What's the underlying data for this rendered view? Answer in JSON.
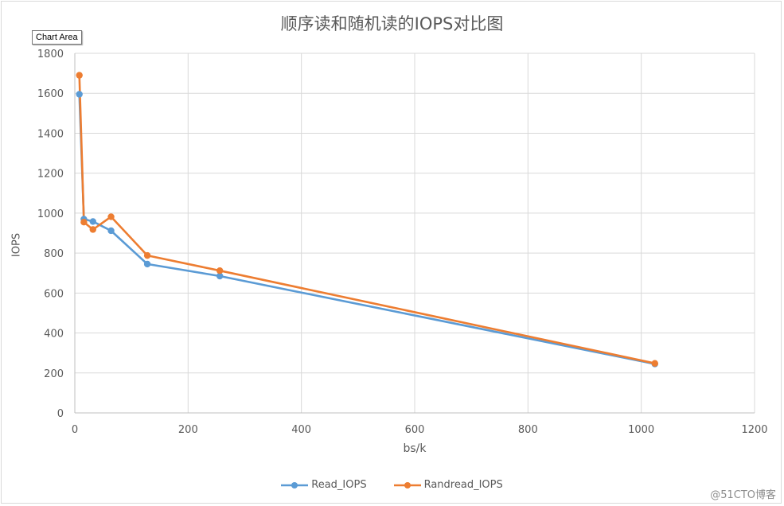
{
  "tooltip": "Chart Area",
  "watermark": "@51CTO博客",
  "chart_data": {
    "type": "line",
    "title": "顺序读和随机读的IOPS对比图",
    "xlabel": "bs/k",
    "ylabel": "IOPS",
    "xlim": [
      0,
      1200
    ],
    "ylim": [
      0,
      1800
    ],
    "x_ticks": [
      0,
      200,
      400,
      600,
      800,
      1000,
      1200
    ],
    "y_ticks": [
      0,
      200,
      400,
      600,
      800,
      1000,
      1200,
      1400,
      1600,
      1800
    ],
    "grid": true,
    "legend_position": "bottom",
    "series": [
      {
        "name": "Read_IOPS",
        "color": "#5b9bd5",
        "x": [
          8,
          16,
          32,
          64,
          128,
          256,
          1024
        ],
        "y": [
          1595,
          970,
          958,
          912,
          745,
          685,
          245
        ]
      },
      {
        "name": "Randread_IOPS",
        "color": "#ed7d31",
        "x": [
          8,
          16,
          32,
          64,
          128,
          256,
          1024
        ],
        "y": [
          1690,
          955,
          918,
          982,
          788,
          712,
          248
        ]
      }
    ]
  }
}
